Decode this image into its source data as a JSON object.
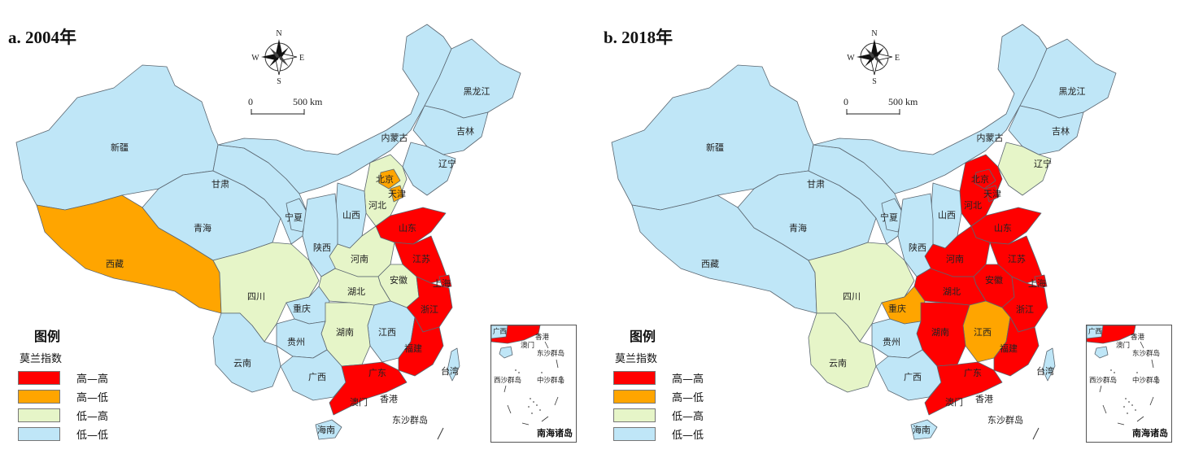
{
  "colors": {
    "hh": "#ff0000",
    "hl": "#ffa500",
    "lh": "#e6f5c8",
    "ll": "#bfe6f7"
  },
  "panels": [
    {
      "title": "a. 2004年",
      "classes": {
        "xinjiang": "ll",
        "xizang": "hl",
        "qinghai": "ll",
        "gansu": "ll",
        "neimenggu": "ll",
        "heilongjiang": "ll",
        "jilin": "ll",
        "liaoning": "ll",
        "hebei": "lh",
        "beijing": "hl",
        "tianjin": "hl",
        "shanxi": "ll",
        "ningxia": "ll",
        "shaanxi": "ll",
        "shandong": "hh",
        "henan": "lh",
        "jiangsu": "hh",
        "shanghai": "hh",
        "anhui": "lh",
        "hubei": "lh",
        "sichuan": "lh",
        "chongqing": "ll",
        "zhejiang": "hh",
        "jiangxi": "ll",
        "hunan": "lh",
        "guizhou": "ll",
        "yunnan": "ll",
        "guangxi": "ll",
        "guangdong": "hh",
        "fujian": "hh",
        "hainan": "ll",
        "taiwan": "ll"
      }
    },
    {
      "title": "b. 2018年",
      "classes": {
        "xinjiang": "ll",
        "xizang": "ll",
        "qinghai": "ll",
        "gansu": "ll",
        "neimenggu": "ll",
        "heilongjiang": "ll",
        "jilin": "ll",
        "liaoning": "lh",
        "hebei": "hh",
        "beijing": "hh",
        "tianjin": "hh",
        "shanxi": "ll",
        "ningxia": "ll",
        "shaanxi": "ll",
        "shandong": "hh",
        "henan": "hh",
        "jiangsu": "hh",
        "shanghai": "hh",
        "anhui": "hh",
        "hubei": "hh",
        "sichuan": "lh",
        "chongqing": "hl",
        "zhejiang": "hh",
        "jiangxi": "hl",
        "hunan": "hh",
        "guizhou": "ll",
        "yunnan": "lh",
        "guangxi": "ll",
        "guangdong": "hh",
        "fujian": "hh",
        "hainan": "ll",
        "taiwan": "ll"
      }
    }
  ],
  "province_labels": {
    "xinjiang": "新疆",
    "xizang": "西藏",
    "qinghai": "青海",
    "gansu": "甘肃",
    "neimenggu": "内蒙古",
    "heilongjiang": "黑龙江",
    "jilin": "吉林",
    "liaoning": "辽宁",
    "hebei": "河北",
    "beijing": "北京",
    "tianjin": "天津",
    "shanxi": "山西",
    "ningxia": "宁夏",
    "shaanxi": "陕西",
    "shandong": "山东",
    "henan": "河南",
    "jiangsu": "江苏",
    "shanghai": "上海",
    "anhui": "安徽",
    "hubei": "湖北",
    "sichuan": "四川",
    "chongqing": "重庆",
    "zhejiang": "浙江",
    "jiangxi": "江西",
    "hunan": "湖南",
    "guizhou": "贵州",
    "yunnan": "云南",
    "guangxi": "广西",
    "guangdong": "广东",
    "fujian": "福建",
    "hainan": "海南",
    "taiwan": "台湾"
  },
  "extra_labels": {
    "macau": "澳门",
    "hongkong": "香港",
    "dongsha": "东沙群岛",
    "xisha": "西沙群岛",
    "zhongsha": "中沙群岛",
    "nansha_caption": "南海诸岛"
  },
  "compass": {
    "n": "N",
    "s": "S",
    "e": "E",
    "w": "W"
  },
  "scale": {
    "zero": "0",
    "distance": "500 km"
  },
  "legend": {
    "title": "图例",
    "subtitle": "莫兰指数",
    "items": [
      {
        "key": "hh",
        "label": "高—高"
      },
      {
        "key": "hl",
        "label": "高—低"
      },
      {
        "key": "lh",
        "label": "低—高"
      },
      {
        "key": "ll",
        "label": "低—低"
      }
    ]
  }
}
